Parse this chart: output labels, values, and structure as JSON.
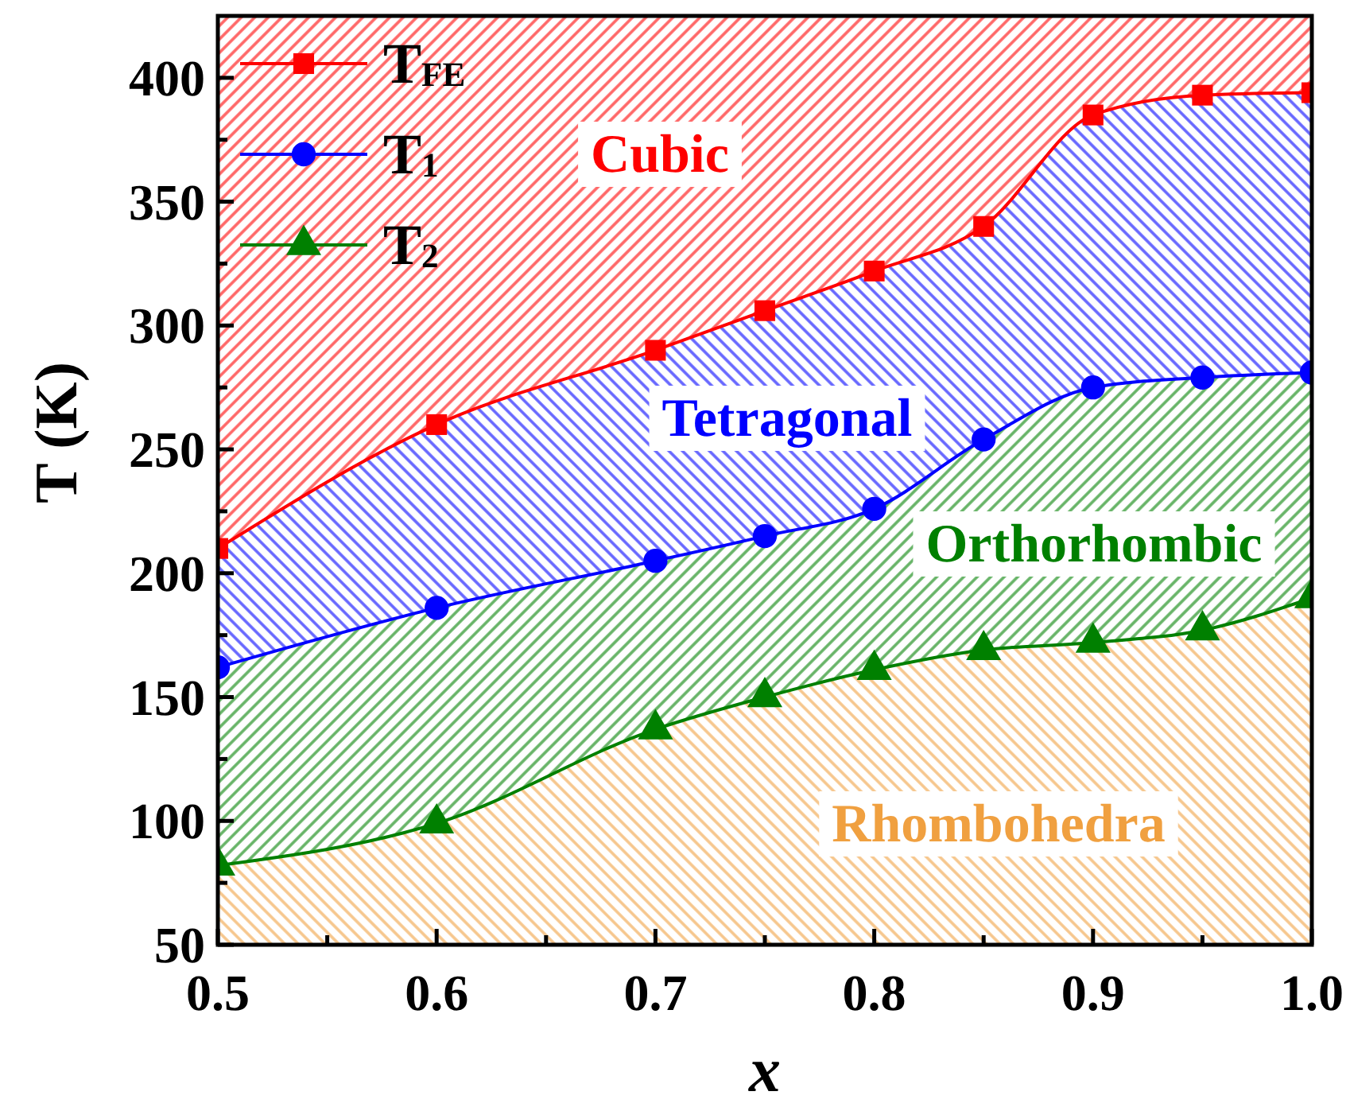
{
  "chart_data": {
    "type": "line",
    "xlabel": "x",
    "ylabel": "T (K)",
    "x": [
      0.5,
      0.6,
      0.7,
      0.75,
      0.8,
      0.85,
      0.9,
      0.95,
      1.0
    ],
    "series": [
      {
        "name": "T$_{FE}$",
        "color": "#ff0000",
        "marker": "square",
        "values": [
          210,
          260,
          290,
          306,
          322,
          340,
          385,
          393,
          394
        ],
        "lower": [
          210,
          260,
          290,
          306,
          322,
          340,
          385,
          393,
          394
        ],
        "upper": [
          425,
          425,
          425,
          425,
          425,
          425,
          425,
          425,
          425
        ]
      },
      {
        "name": "T$_{1}$",
        "color": "#0000ff",
        "marker": "circle",
        "values": [
          162,
          186,
          205,
          215,
          226,
          254,
          275,
          279,
          281
        ],
        "lower": [
          162,
          186,
          205,
          215,
          226,
          254,
          275,
          279,
          281
        ],
        "upper": [
          210,
          260,
          290,
          306,
          322,
          340,
          385,
          393,
          394
        ]
      },
      {
        "name": "T$_{2}$",
        "color": "#008000",
        "marker": "triangle",
        "values": [
          82,
          99,
          137,
          150,
          161,
          169,
          172,
          177,
          190
        ],
        "lower": [
          82,
          99,
          137,
          150,
          161,
          169,
          172,
          177,
          190
        ],
        "upper": [
          162,
          186,
          205,
          215,
          226,
          254,
          275,
          279,
          281
        ]
      }
    ],
    "xlim": [
      0.5,
      1.0
    ],
    "xticks": [
      0.5,
      {
        "value": 0.55,
        "label": null
      },
      0.6,
      {
        "value": 0.65,
        "label": null
      },
      0.7,
      {
        "value": 0.75,
        "label": null
      },
      0.8,
      {
        "value": 0.85,
        "label": null
      },
      0.9,
      {
        "value": 0.95,
        "label": null
      },
      {
        "value": 1.0,
        "label": "1.0"
      }
    ],
    "ylim": [
      50,
      425
    ],
    "yticks": [
      50,
      {
        "value": 75,
        "label": null
      },
      100,
      {
        "value": 125,
        "label": null
      },
      150,
      {
        "value": 175,
        "label": null
      },
      200,
      {
        "value": 225,
        "label": null
      },
      250,
      {
        "value": 275,
        "label": null
      },
      300,
      {
        "value": 325,
        "label": null
      },
      350,
      {
        "value": 375,
        "label": null
      },
      400
    ],
    "annotations": [
      "Cubic",
      "Tetragonal",
      "Orthorhombic",
      "Rhombohedra"
    ],
    "legend": "top left"
  }
}
